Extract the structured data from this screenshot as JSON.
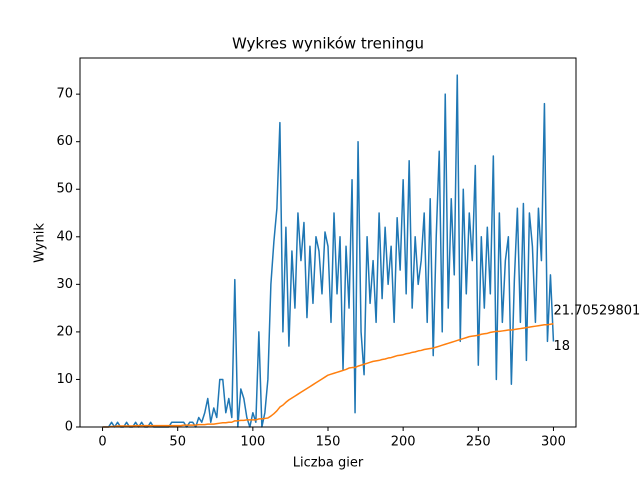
{
  "chart_data": {
    "type": "line",
    "title": "Wykres wyników treningu",
    "x_label": "Liczba gier",
    "y_label": "Wynik",
    "x": [
      0,
      2,
      4,
      6,
      8,
      10,
      12,
      14,
      16,
      18,
      20,
      22,
      24,
      26,
      28,
      30,
      32,
      34,
      36,
      38,
      40,
      42,
      44,
      46,
      48,
      50,
      52,
      54,
      56,
      58,
      60,
      62,
      64,
      66,
      68,
      70,
      72,
      74,
      76,
      78,
      80,
      82,
      84,
      86,
      88,
      90,
      92,
      94,
      96,
      98,
      100,
      102,
      104,
      106,
      108,
      110,
      112,
      114,
      116,
      118,
      120,
      122,
      124,
      126,
      128,
      130,
      132,
      134,
      136,
      138,
      140,
      142,
      144,
      146,
      148,
      150,
      152,
      154,
      156,
      158,
      160,
      162,
      164,
      166,
      168,
      170,
      172,
      174,
      176,
      178,
      180,
      182,
      184,
      186,
      188,
      190,
      192,
      194,
      196,
      198,
      200,
      202,
      204,
      206,
      208,
      210,
      212,
      214,
      216,
      218,
      220,
      222,
      224,
      226,
      228,
      230,
      232,
      234,
      236,
      238,
      240,
      242,
      244,
      246,
      248,
      250,
      252,
      254,
      256,
      258,
      260,
      262,
      264,
      266,
      268,
      270,
      272,
      274,
      276,
      278,
      280,
      282,
      284,
      286,
      288,
      290,
      292,
      294,
      296,
      298,
      300
    ],
    "series": [
      {
        "color": "#1f77b4",
        "values": [
          0,
          0,
          0,
          1,
          0,
          1,
          0,
          0,
          1,
          0,
          0,
          1,
          0,
          1,
          0,
          0,
          1,
          0,
          0,
          0,
          0,
          0,
          0,
          1,
          1,
          1,
          1,
          1,
          0,
          1,
          1,
          0,
          2,
          1,
          3,
          6,
          1,
          4,
          2,
          10,
          10,
          3,
          6,
          2,
          31,
          0,
          8,
          6,
          2,
          0,
          3,
          1,
          20,
          0,
          3,
          10,
          30,
          39,
          46,
          64,
          20,
          42,
          17,
          37,
          25,
          45,
          35,
          43,
          23,
          38,
          26,
          40,
          37,
          28,
          41,
          38,
          22,
          45,
          28,
          40,
          12,
          38,
          25,
          52,
          3,
          60,
          20,
          11,
          40,
          26,
          35,
          22,
          45,
          27,
          42,
          30,
          38,
          22,
          44,
          33,
          52,
          28,
          56,
          25,
          40,
          30,
          35,
          45,
          22,
          48,
          15,
          40,
          58,
          20,
          70,
          25,
          48,
          32,
          74,
          18,
          50,
          28,
          45,
          35,
          55,
          13,
          40,
          25,
          42,
          28,
          57,
          10,
          45,
          22,
          35,
          40,
          9,
          31,
          46,
          22,
          47,
          14,
          45,
          38,
          22,
          46,
          35,
          68,
          18,
          32,
          18
        ]
      },
      {
        "color": "#ff7f0e",
        "values": [
          0,
          0,
          0,
          0.1,
          0.1,
          0.2,
          0.2,
          0.2,
          0.2,
          0.2,
          0.2,
          0.3,
          0.3,
          0.3,
          0.3,
          0.3,
          0.3,
          0.3,
          0.3,
          0.3,
          0.3,
          0.3,
          0.3,
          0.3,
          0.3,
          0.3,
          0.3,
          0.4,
          0.4,
          0.4,
          0.4,
          0.4,
          0.5,
          0.5,
          0.5,
          0.6,
          0.6,
          0.6,
          0.7,
          0.8,
          0.9,
          0.9,
          1.0,
          1.0,
          1.3,
          1.3,
          1.4,
          1.4,
          1.5,
          1.5,
          1.5,
          1.5,
          1.7,
          1.7,
          1.8,
          1.9,
          2.3,
          2.8,
          3.4,
          4.2,
          4.6,
          5.2,
          5.7,
          6.1,
          6.5,
          6.9,
          7.3,
          7.7,
          8.1,
          8.5,
          8.9,
          9.3,
          9.7,
          10.1,
          10.5,
          10.9,
          11.1,
          11.3,
          11.5,
          11.7,
          11.9,
          12.1,
          12.4,
          12.5,
          12.5,
          12.8,
          13.0,
          13.2,
          13.4,
          13.6,
          13.8,
          13.9,
          14.0,
          14.2,
          14.3,
          14.5,
          14.6,
          14.8,
          15.0,
          15.1,
          15.2,
          15.4,
          15.5,
          15.7,
          15.8,
          16.0,
          16.1,
          16.3,
          16.4,
          16.5,
          16.6,
          16.8,
          17.0,
          17.2,
          17.4,
          17.6,
          17.8,
          18.0,
          18.2,
          18.4,
          18.6,
          18.8,
          19.0,
          19.1,
          19.2,
          19.3,
          19.5,
          19.6,
          19.7,
          19.9,
          20.0,
          20.1,
          20.1,
          20.2,
          20.3,
          20.4,
          20.4,
          20.5,
          20.6,
          20.7,
          20.8,
          20.9,
          21.0,
          21.1,
          21.2,
          21.3,
          21.4,
          21.5,
          21.5,
          21.6,
          21.70529801
        ]
      }
    ],
    "annotations": [
      "18",
      "21.70529801"
    ],
    "xlim": [
      -15,
      315
    ],
    "ylim": [
      0,
      77.6
    ],
    "xticks": [
      0,
      50,
      100,
      150,
      200,
      250,
      300
    ],
    "yticks": [
      0,
      10,
      20,
      30,
      40,
      50,
      60,
      70
    ]
  }
}
